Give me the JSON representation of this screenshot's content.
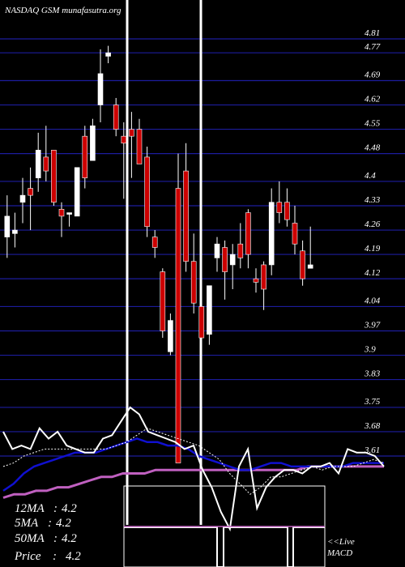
{
  "chart_data": {
    "type": "candlestick",
    "watermark": "NASDAQ GSM munafasutra.org",
    "y_ticks": [
      4.81,
      4.77,
      4.69,
      4.62,
      4.55,
      4.48,
      4.4,
      4.33,
      4.26,
      4.19,
      4.12,
      4.04,
      3.97,
      3.9,
      3.83,
      3.75,
      3.68,
      3.61
    ],
    "ylim": [
      3.59,
      4.88
    ],
    "gridlines": true,
    "colors": {
      "background": "#000000",
      "grid": "#1c1c9c",
      "up": "#ffffff",
      "down": "#cc0000",
      "ma_fast": "#ffffff",
      "ma_mid": "#1010d0",
      "ma_slow": "#c060c0",
      "vertical_marker": "#ffffff"
    },
    "candles": [
      {
        "open": 4.24,
        "high": 4.36,
        "low": 4.18,
        "close": 4.3
      },
      {
        "open": 4.25,
        "high": 4.31,
        "low": 4.21,
        "close": 4.26
      },
      {
        "open": 4.34,
        "high": 4.41,
        "low": 4.28,
        "close": 4.36
      },
      {
        "open": 4.38,
        "high": 4.44,
        "low": 4.26,
        "close": 4.36
      },
      {
        "open": 4.41,
        "high": 4.54,
        "low": 4.37,
        "close": 4.49
      },
      {
        "open": 4.47,
        "high": 4.56,
        "low": 4.4,
        "close": 4.43
      },
      {
        "open": 4.49,
        "high": 4.49,
        "low": 4.33,
        "close": 4.34
      },
      {
        "open": 4.32,
        "high": 4.34,
        "low": 4.24,
        "close": 4.3
      },
      {
        "open": 4.31,
        "high": 4.31,
        "low": 4.27,
        "close": 4.31
      },
      {
        "open": 4.3,
        "high": 4.44,
        "low": 4.3,
        "close": 4.44
      },
      {
        "open": 4.53,
        "high": 4.56,
        "low": 4.38,
        "close": 4.41
      },
      {
        "open": 4.46,
        "high": 4.58,
        "low": 4.46,
        "close": 4.56
      },
      {
        "open": 4.62,
        "high": 4.78,
        "low": 4.57,
        "close": 4.71
      },
      {
        "open": 4.76,
        "high": 4.79,
        "low": 4.74,
        "close": 4.77
      },
      {
        "open": 4.62,
        "high": 4.64,
        "low": 4.53,
        "close": 4.55
      },
      {
        "open": 4.53,
        "high": 4.57,
        "low": 4.35,
        "close": 4.51
      },
      {
        "open": 4.55,
        "high": 4.6,
        "low": 4.41,
        "close": 4.53
      },
      {
        "open": 4.55,
        "high": 4.58,
        "low": 4.45,
        "close": 4.45
      },
      {
        "open": 4.47,
        "high": 4.5,
        "low": 4.24,
        "close": 4.27
      },
      {
        "open": 4.24,
        "high": 4.26,
        "low": 4.18,
        "close": 4.21
      },
      {
        "open": 4.14,
        "high": 4.15,
        "low": 3.95,
        "close": 3.97
      },
      {
        "open": 3.91,
        "high": 4.02,
        "low": 3.9,
        "close": 4.0
      },
      {
        "open": 4.38,
        "high": 4.48,
        "low": 3.59,
        "close": 3.59
      },
      {
        "open": 4.43,
        "high": 4.51,
        "low": 4.14,
        "close": 4.17
      },
      {
        "open": 4.17,
        "high": 4.25,
        "low": 4.02,
        "close": 4.05
      },
      {
        "open": 4.04,
        "high": 4.12,
        "low": 3.89,
        "close": 3.95
      },
      {
        "open": 3.96,
        "high": 4.1,
        "low": 3.93,
        "close": 4.1
      },
      {
        "open": 4.18,
        "high": 4.24,
        "low": 4.14,
        "close": 4.22
      },
      {
        "open": 4.21,
        "high": 4.23,
        "low": 4.06,
        "close": 4.14
      },
      {
        "open": 4.16,
        "high": 4.22,
        "low": 4.09,
        "close": 4.19
      },
      {
        "open": 4.22,
        "high": 4.28,
        "low": 4.15,
        "close": 4.18
      },
      {
        "open": 4.31,
        "high": 4.32,
        "low": 4.15,
        "close": 4.19
      },
      {
        "open": 4.12,
        "high": 4.15,
        "low": 4.08,
        "close": 4.11
      },
      {
        "open": 4.16,
        "high": 4.17,
        "low": 4.03,
        "close": 4.09
      },
      {
        "open": 4.16,
        "high": 4.38,
        "low": 4.13,
        "close": 4.34
      },
      {
        "open": 4.34,
        "high": 4.4,
        "low": 4.28,
        "close": 4.31
      },
      {
        "open": 4.34,
        "high": 4.38,
        "low": 4.27,
        "close": 4.29
      },
      {
        "open": 4.28,
        "high": 4.33,
        "low": 4.19,
        "close": 4.22
      },
      {
        "open": 4.2,
        "high": 4.23,
        "low": 4.1,
        "close": 4.12
      },
      {
        "open": 4.15,
        "high": 4.27,
        "low": 4.15,
        "close": 4.16
      }
    ],
    "indicators": {
      "ma_fast": [
        3.68,
        3.63,
        3.64,
        3.63,
        3.69,
        3.66,
        3.68,
        3.64,
        3.63,
        3.62,
        3.62,
        3.66,
        3.67,
        3.71,
        3.75,
        3.73,
        3.68,
        3.67,
        3.66,
        3.65,
        3.63,
        3.64,
        3.57,
        3.52,
        3.45,
        3.4,
        3.58,
        3.63,
        3.46,
        3.52,
        3.55,
        3.57,
        3.57,
        3.56,
        3.58,
        3.58,
        3.59,
        3.56,
        3.63,
        3.62,
        3.62,
        3.61,
        3.58
      ],
      "ma_dotted": [
        3.58,
        3.59,
        3.61,
        3.62,
        3.63,
        3.63,
        3.63,
        3.63,
        3.63,
        3.63,
        3.63,
        3.64,
        3.65,
        3.67,
        3.69,
        3.68,
        3.67,
        3.66,
        3.65,
        3.64,
        3.62,
        3.6,
        3.56,
        3.53,
        3.5,
        3.52,
        3.55,
        3.55,
        3.56,
        3.57,
        3.58,
        3.57,
        3.58,
        3.58,
        3.58,
        3.59,
        3.6,
        3.59
      ],
      "ma_mid": [
        3.51,
        3.53,
        3.56,
        3.58,
        3.59,
        3.6,
        3.61,
        3.62,
        3.62,
        3.62,
        3.63,
        3.64,
        3.65,
        3.66,
        3.65,
        3.65,
        3.64,
        3.64,
        3.63,
        3.61,
        3.6,
        3.59,
        3.58,
        3.57,
        3.57,
        3.58,
        3.59,
        3.59,
        3.58,
        3.58,
        3.58,
        3.58,
        3.58,
        3.58,
        3.59,
        3.59,
        3.59,
        3.59
      ],
      "ma_slow": [
        3.49,
        3.5,
        3.5,
        3.51,
        3.51,
        3.52,
        3.52,
        3.53,
        3.54,
        3.55,
        3.55,
        3.56,
        3.56,
        3.56,
        3.57,
        3.57,
        3.57,
        3.57,
        3.57,
        3.57,
        3.57,
        3.57,
        3.57,
        3.57,
        3.57,
        3.57,
        3.57,
        3.57,
        3.58,
        3.58,
        3.58,
        3.58,
        3.58,
        3.58,
        3.58,
        3.58
      ]
    },
    "legend": [
      {
        "label": "12MA",
        "value": "4.2"
      },
      {
        "label": "5MA",
        "value": "4.2"
      },
      {
        "label": "50MA",
        "value": "4.2"
      },
      {
        "label": "Price",
        "value": "4.2"
      }
    ],
    "legend_position": "bottom-left",
    "macd_label": "<<Live\nMACD"
  }
}
